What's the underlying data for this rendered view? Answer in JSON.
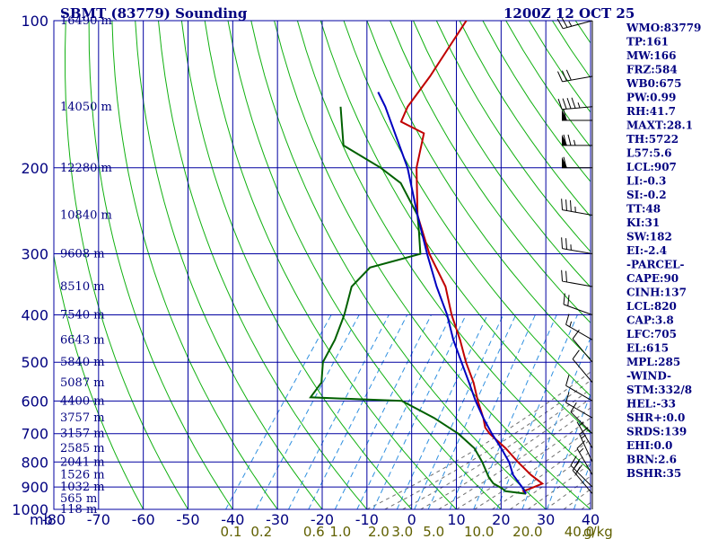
{
  "header": {
    "station": "SBMT (83779) Sounding",
    "time": "1200Z 12 OCT 25"
  },
  "stats": [
    "WMO:83779",
    "TP:161",
    "MW:166",
    "FRZ:584",
    "WB0:675",
    "PW:0.99",
    "RH:41.7",
    "MAXT:28.1",
    "TH:5722",
    "L57:5.6",
    "LCL:907",
    "LI:-0.3",
    "SI:-0.2",
    "TT:48",
    "KI:31",
    "SW:182",
    "EI:-2.4",
    "-PARCEL-",
    "CAPE:90",
    "CINH:137",
    "LCL:820",
    "CAP:3.8",
    "LFC:705",
    "EL:615",
    "MPL:285",
    "-WIND-",
    "STM:332/8",
    "HEL:-33",
    "SHR+:0.0",
    "SRDS:139",
    "EHI:0.0",
    "BRN:2.6",
    "BSHR:35"
  ],
  "axis_unit_label": "mb",
  "mixing_ratio_unit": "g/kg",
  "colors": {
    "grid": "#0000a0",
    "dry_adiabat": "#10b010",
    "moist_adiabat": "#707070",
    "mixing_ratio": "#3090e0",
    "temperature": "#c00000",
    "dewpoint": "#006000",
    "parcel": "#0000c0"
  },
  "chart_data": {
    "type": "skew-t",
    "title": "SBMT (83779) Sounding",
    "xlabel": "",
    "ylabel": "mb",
    "pressure_levels": [
      100,
      200,
      300,
      400,
      500,
      600,
      700,
      800,
      900,
      1000
    ],
    "temperature_ticks": [
      -80,
      -70,
      -60,
      -50,
      -40,
      -30,
      -20,
      -10,
      0,
      10,
      20,
      30,
      40
    ],
    "xlim_at_1000mb": [
      -80,
      40
    ],
    "ylim": [
      1000,
      100
    ],
    "log_pressure": true,
    "mixing_ratio_labels": [
      "0.1",
      "0.2",
      "0.6",
      "1.0",
      "2.0",
      "3.0",
      "5.0",
      "10.0",
      "20.0",
      "40.0"
    ],
    "mixing_ratio_values": [
      0.1,
      0.2,
      0.6,
      1.0,
      2.0,
      3.0,
      5.0,
      10.0,
      20.0,
      40.0
    ],
    "height_labels": [
      {
        "p": 100,
        "label": "16490 m"
      },
      {
        "p": 150,
        "label": "14050 m"
      },
      {
        "p": 200,
        "label": "12280 m"
      },
      {
        "p": 250,
        "label": "10840 m"
      },
      {
        "p": 300,
        "label": "9608 m"
      },
      {
        "p": 350,
        "label": "8510 m"
      },
      {
        "p": 400,
        "label": "7540 m"
      },
      {
        "p": 450,
        "label": "6643 m"
      },
      {
        "p": 500,
        "label": "5840 m"
      },
      {
        "p": 550,
        "label": "5087 m"
      },
      {
        "p": 600,
        "label": "4400 m"
      },
      {
        "p": 650,
        "label": "3757 m"
      },
      {
        "p": 700,
        "label": "3157 m"
      },
      {
        "p": 750,
        "label": "2585 m"
      },
      {
        "p": 800,
        "label": "2041 m"
      },
      {
        "p": 850,
        "label": "1526 m"
      },
      {
        "p": 900,
        "label": "1032 m"
      },
      {
        "p": 950,
        "label": "565 m"
      },
      {
        "p": 1000,
        "label": "118 m"
      }
    ],
    "series": [
      {
        "key": "temperature",
        "points": [
          [
            929,
            23
          ],
          [
            918,
            22
          ],
          [
            908,
            23
          ],
          [
            886,
            25
          ],
          [
            850,
            21
          ],
          [
            800,
            16
          ],
          [
            750,
            11
          ],
          [
            700,
            5
          ],
          [
            680,
            3
          ],
          [
            650,
            1
          ],
          [
            600,
            -3
          ],
          [
            550,
            -7
          ],
          [
            500,
            -12
          ],
          [
            450,
            -17
          ],
          [
            400,
            -23
          ],
          [
            350,
            -29
          ],
          [
            300,
            -38
          ],
          [
            250,
            -47
          ],
          [
            200,
            -55
          ],
          [
            170,
            -59
          ],
          [
            161,
            -66
          ],
          [
            150,
            -67
          ],
          [
            130,
            -67
          ],
          [
            100,
            -68
          ]
        ]
      },
      {
        "key": "dewpoint",
        "points": [
          [
            929,
            23
          ],
          [
            918,
            18
          ],
          [
            908,
            17
          ],
          [
            900,
            16
          ],
          [
            885,
            14
          ],
          [
            860,
            12
          ],
          [
            800,
            8
          ],
          [
            750,
            4
          ],
          [
            700,
            -2
          ],
          [
            650,
            -10
          ],
          [
            600,
            -20
          ],
          [
            590,
            -41
          ],
          [
            550,
            -41
          ],
          [
            500,
            -44
          ],
          [
            450,
            -45
          ],
          [
            400,
            -47
          ],
          [
            350,
            -50
          ],
          [
            320,
            -49
          ],
          [
            300,
            -40
          ],
          [
            270,
            -44
          ],
          [
            250,
            -47
          ],
          [
            215,
            -56
          ],
          [
            200,
            -63
          ],
          [
            180,
            -75
          ],
          [
            150,
            -82
          ]
        ]
      },
      {
        "key": "parcel",
        "points": [
          [
            929,
            23
          ],
          [
            900,
            21
          ],
          [
            850,
            17
          ],
          [
            800,
            14
          ],
          [
            750,
            10
          ],
          [
            700,
            5.5
          ],
          [
            650,
            1
          ],
          [
            600,
            -3.5
          ],
          [
            550,
            -8
          ],
          [
            500,
            -13
          ],
          [
            450,
            -18.5
          ],
          [
            400,
            -24
          ],
          [
            350,
            -31
          ],
          [
            300,
            -38.5
          ],
          [
            250,
            -47
          ],
          [
            200,
            -57
          ],
          [
            150,
            -72
          ],
          [
            140,
            -76
          ]
        ]
      }
    ],
    "wind_barbs": [
      {
        "p": 929,
        "dir": 320,
        "spd": 20
      },
      {
        "p": 900,
        "dir": 315,
        "spd": 25
      },
      {
        "p": 850,
        "dir": 330,
        "spd": 15
      },
      {
        "p": 800,
        "dir": 335,
        "spd": 15
      },
      {
        "p": 750,
        "dir": 330,
        "spd": 5
      },
      {
        "p": 700,
        "dir": 315,
        "spd": 10
      },
      {
        "p": 650,
        "dir": 300,
        "spd": 10
      },
      {
        "p": 600,
        "dir": 300,
        "spd": 10
      },
      {
        "p": 550,
        "dir": 320,
        "spd": 10
      },
      {
        "p": 500,
        "dir": 320,
        "spd": 10
      },
      {
        "p": 450,
        "dir": 300,
        "spd": 15
      },
      {
        "p": 400,
        "dir": 290,
        "spd": 20
      },
      {
        "p": 350,
        "dir": 280,
        "spd": 20
      },
      {
        "p": 300,
        "dir": 280,
        "spd": 25
      },
      {
        "p": 250,
        "dir": 280,
        "spd": 35
      },
      {
        "p": 200,
        "dir": 270,
        "spd": 60
      },
      {
        "p": 180,
        "dir": 270,
        "spd": 75
      },
      {
        "p": 160,
        "dir": 270,
        "spd": 60
      },
      {
        "p": 150,
        "dir": 265,
        "spd": 45
      },
      {
        "p": 130,
        "dir": 260,
        "spd": 30
      },
      {
        "p": 100,
        "dir": 255,
        "spd": 25
      }
    ]
  }
}
